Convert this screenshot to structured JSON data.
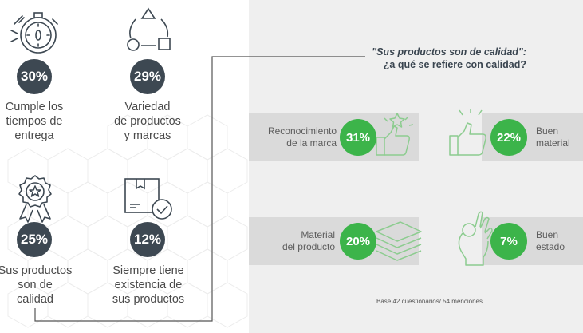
{
  "left_stats": [
    {
      "percent": "30%",
      "label_lines": [
        "Cumple los",
        "tiempos de",
        "entrega"
      ],
      "icon": "stopwatch-icon"
    },
    {
      "percent": "29%",
      "label_lines": [
        "Variedad",
        "de productos",
        "y marcas"
      ],
      "icon": "shapes-cycle-icon"
    },
    {
      "percent": "25%",
      "label_lines": [
        "Sus productos",
        "son de",
        "calidad"
      ],
      "icon": "award-badge-icon"
    },
    {
      "percent": "12%",
      "label_lines": [
        "Siempre tiene",
        "existencia de",
        "sus productos"
      ],
      "icon": "box-check-icon"
    }
  ],
  "quality_section": {
    "title_quote": "\"Sus productos son de calidad\":",
    "title_question": "¿a qué se refiere con calidad?",
    "items": [
      {
        "percent": "31%",
        "label_lines": [
          "Reconocimiento",
          "de la marca"
        ],
        "icon": "thumbs-up-star-icon"
      },
      {
        "percent": "22%",
        "label_lines": [
          "Buen",
          "material"
        ],
        "icon": "thumbs-up-icon"
      },
      {
        "percent": "20%",
        "label_lines": [
          "Material",
          "del producto"
        ],
        "icon": "layers-icon"
      },
      {
        "percent": "7%",
        "label_lines": [
          "Buen",
          "estado"
        ],
        "icon": "ok-hand-icon"
      }
    ],
    "base_note": "Base 42 cuestionarios/ 54 menciones"
  },
  "colors": {
    "dark_circle": "#3d4852",
    "green_circle": "#3cb44a",
    "panel_bg": "#efefef",
    "band_bg": "#dadada"
  }
}
